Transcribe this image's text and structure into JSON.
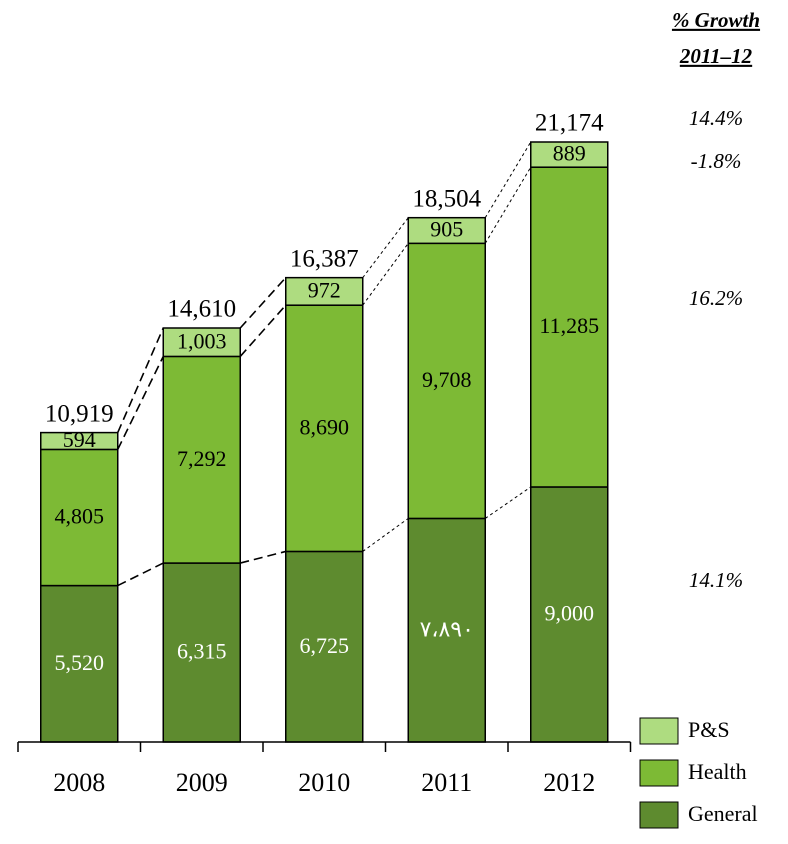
{
  "chart_data": {
    "type": "stacked_bar",
    "categories": [
      "2008",
      "2009",
      "2010",
      "2011",
      "2012"
    ],
    "series": [
      {
        "name": "General",
        "color": "#5e8b2f",
        "values": [
          5520,
          6315,
          6725,
          7890,
          9000
        ],
        "value_labels": [
          "5,520",
          "6,315",
          "6,725",
          "٧،٨٩٠",
          "9,000"
        ]
      },
      {
        "name": "Health",
        "color": "#7dba35",
        "values": [
          4805,
          7292,
          8690,
          9708,
          11285
        ],
        "value_labels": [
          "4,805",
          "7,292",
          "8,690",
          "9,708",
          "11,285"
        ]
      },
      {
        "name": "P&S",
        "color": "#aedc80",
        "values": [
          594,
          1003,
          972,
          905,
          889
        ],
        "value_labels": [
          "594",
          "1,003",
          "972",
          "905",
          "889"
        ]
      }
    ],
    "totals": [
      10919,
      14610,
      16387,
      18504,
      21174
    ],
    "total_labels": [
      "10,919",
      "14,610",
      "16,387",
      "18,504",
      "21,174"
    ],
    "growth": {
      "title": [
        "% Growth",
        "2011–12"
      ],
      "total": "14.4%",
      "P&S": "-1.8%",
      "Health": "16.2%",
      "General": "14.1%"
    }
  }
}
